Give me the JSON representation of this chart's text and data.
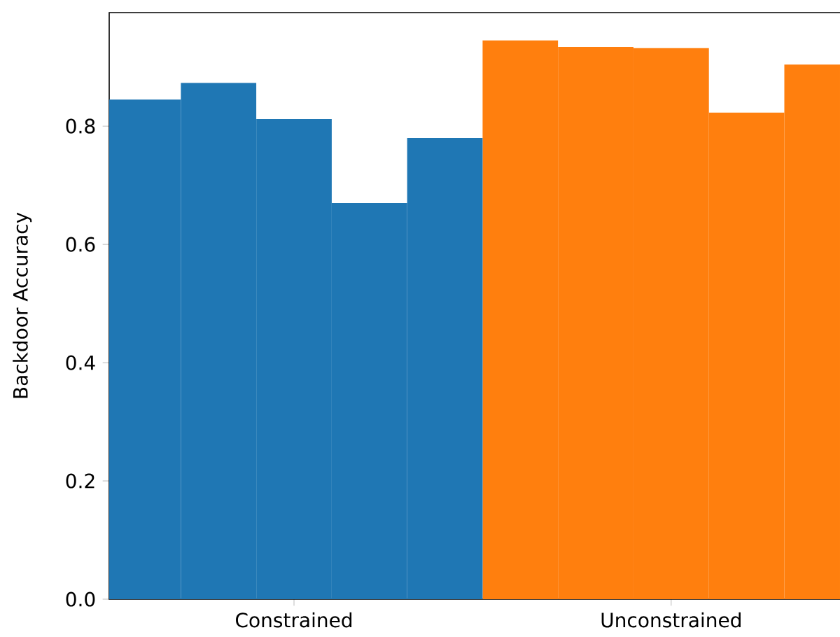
{
  "chart_data": {
    "type": "bar",
    "ylabel": "Backdoor Accuracy",
    "categories": [
      "Constrained",
      "Unconstrained"
    ],
    "series": [
      {
        "colors": [
          "#1f77b4",
          "#ff7f0e"
        ],
        "values": [
          0.845,
          0.945
        ]
      },
      {
        "colors": [
          "#1f77b4",
          "#ff7f0e"
        ],
        "values": [
          0.873,
          0.934
        ]
      },
      {
        "colors": [
          "#1f77b4",
          "#ff7f0e"
        ],
        "values": [
          0.812,
          0.932
        ]
      },
      {
        "colors": [
          "#1f77b4",
          "#ff7f0e"
        ],
        "values": [
          0.67,
          0.823
        ]
      },
      {
        "colors": [
          "#1f77b4",
          "#ff7f0e"
        ],
        "values": [
          0.78,
          0.904
        ]
      }
    ],
    "ylim": [
      0,
      0.992
    ],
    "yticks": [
      {
        "value": 0,
        "label": "0.0"
      },
      {
        "value": 0.2,
        "label": "0.2"
      },
      {
        "value": 0.4,
        "label": "0.4"
      },
      {
        "value": 0.6,
        "label": "0.6"
      },
      {
        "value": 0.8,
        "label": "0.8"
      }
    ],
    "grid": false
  }
}
